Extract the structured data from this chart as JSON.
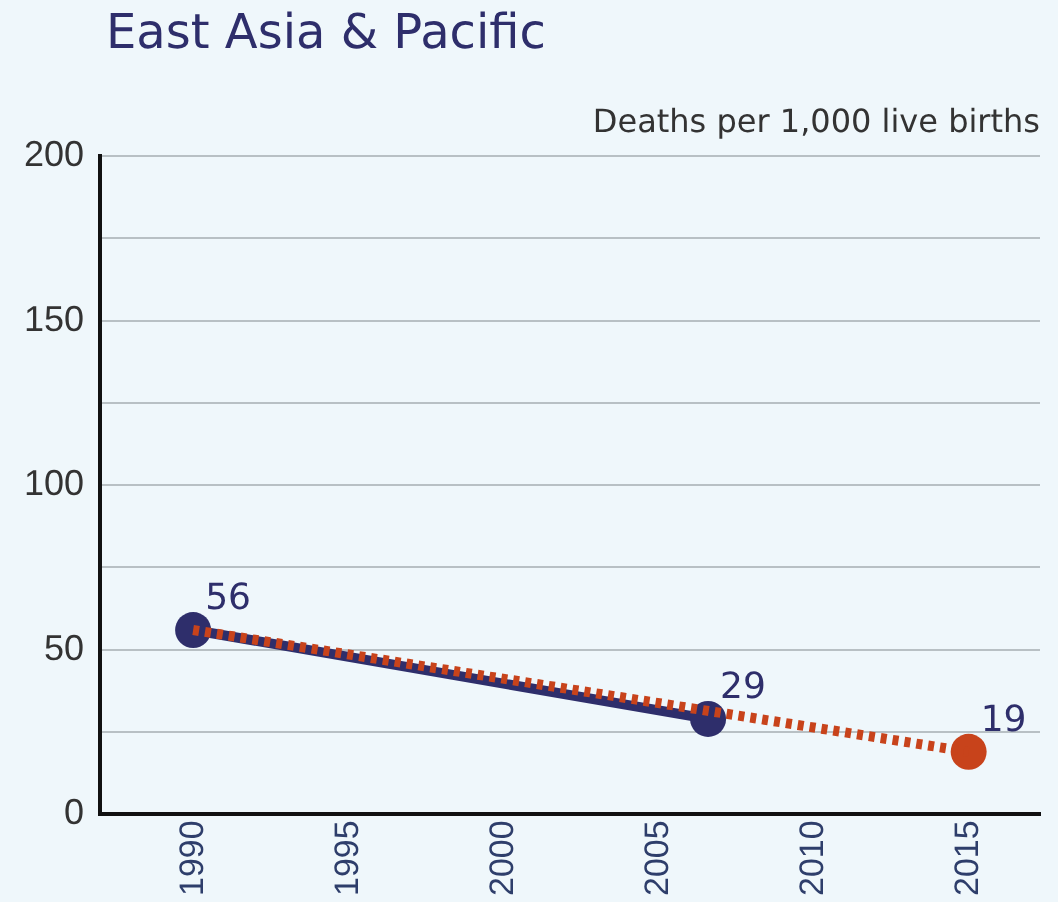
{
  "chart_data": {
    "type": "line",
    "title": "East Asia & Pacific",
    "ylabel": "Deaths per 1,000 live births",
    "xlim": [
      1987,
      2017.3
    ],
    "xticks": [
      1990,
      1995,
      2000,
      2005,
      2010,
      2015
    ],
    "ylim": [
      0,
      200
    ],
    "yticks": [
      0,
      {
        "value": 25,
        "label": null
      },
      50,
      {
        "value": 75,
        "label": null
      },
      100,
      {
        "value": 125,
        "label": null
      },
      150,
      {
        "value": 175,
        "label": null
      },
      200
    ],
    "grid": "y",
    "legend": false,
    "series": [
      {
        "color": "#c8431b",
        "x": [
          1990,
          2015
        ],
        "values": [
          56,
          19
        ],
        "line_style": "dotted",
        "marker": "none"
      },
      {
        "color": "#2e2e6b",
        "x": [
          1990,
          2006.6
        ],
        "values": [
          56,
          29
        ],
        "value_labels": [
          "56",
          "29"
        ],
        "line_style": "solid",
        "marker": "circle"
      },
      {
        "type": "scatter",
        "color": "#c8431b",
        "x": [
          2015
        ],
        "values": [
          19
        ],
        "value_labels": [
          "19"
        ],
        "marker": "circle"
      }
    ]
  }
}
